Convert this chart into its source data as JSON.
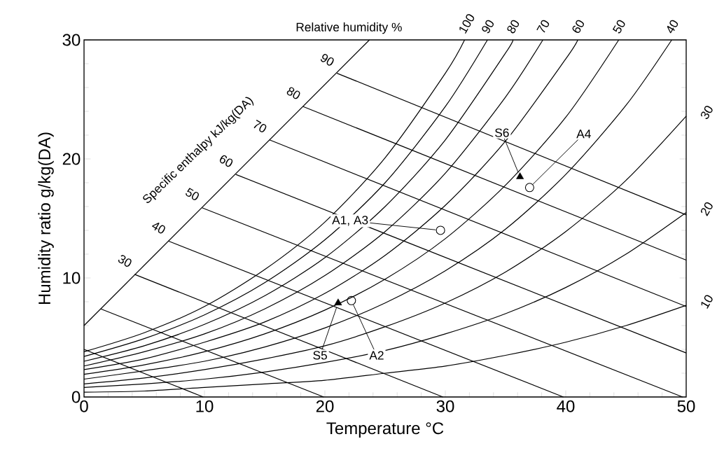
{
  "chart_data": {
    "type": "line",
    "xlabel": "Temperature  °C",
    "ylabel": "Humidity ratio  g/kg(DA)",
    "xlim": [
      0,
      50
    ],
    "ylim": [
      0,
      30
    ],
    "xticks": [
      0,
      10,
      20,
      30,
      40,
      50
    ],
    "yticks": [
      0,
      10,
      20,
      30
    ],
    "grid": false,
    "annotations": [
      "Relative humidity  %",
      "Specific enthalpy  kJ/kg(DA)",
      {
        "text": "S5",
        "x": 21.1,
        "y": 7.9
      },
      {
        "text": "A2",
        "x": 22.2,
        "y": 8.1
      },
      {
        "text": "A1, A3",
        "x": 29.6,
        "y": 14.0
      },
      {
        "text": "S6",
        "x": 36.2,
        "y": 18.5
      },
      {
        "text": "A4",
        "x": 37.0,
        "y": 17.6
      }
    ],
    "series": [
      {
        "name": "100",
        "color": "#000000",
        "x": [
          0,
          5,
          10,
          15,
          20,
          25,
          30,
          31.6
        ],
        "values": [
          3.8,
          5.4,
          7.6,
          10.7,
          14.7,
          20.1,
          27.2,
          30
        ]
      },
      {
        "name": "90",
        "color": "#000000",
        "x": [
          0,
          5,
          10,
          15,
          20,
          25,
          30,
          33.5
        ],
        "values": [
          3.4,
          4.9,
          6.9,
          9.6,
          13.2,
          18.0,
          24.4,
          30
        ]
      },
      {
        "name": "80",
        "color": "#000000",
        "x": [
          0,
          5,
          10,
          15,
          20,
          25,
          30,
          35,
          35.6
        ],
        "values": [
          3.0,
          4.3,
          6.1,
          8.5,
          11.7,
          16.0,
          21.6,
          28.9,
          30
        ]
      },
      {
        "name": "70",
        "color": "#000000",
        "x": [
          0,
          5,
          10,
          15,
          20,
          25,
          30,
          35,
          38.1
        ],
        "values": [
          2.6,
          3.8,
          5.3,
          7.4,
          10.2,
          13.9,
          18.8,
          25.2,
          30
        ]
      },
      {
        "name": "60",
        "color": "#000000",
        "x": [
          0,
          5,
          10,
          15,
          20,
          25,
          30,
          35,
          40,
          41.0
        ],
        "values": [
          2.3,
          3.2,
          4.6,
          6.3,
          8.7,
          11.9,
          16.1,
          21.5,
          28.4,
          30
        ]
      },
      {
        "name": "50",
        "color": "#000000",
        "x": [
          0,
          5,
          10,
          15,
          20,
          25,
          30,
          35,
          40,
          44.4
        ],
        "values": [
          1.9,
          2.7,
          3.8,
          5.3,
          7.3,
          9.9,
          13.3,
          17.8,
          23.5,
          30
        ]
      },
      {
        "name": "40",
        "color": "#000000",
        "x": [
          0,
          5,
          10,
          15,
          20,
          25,
          30,
          35,
          40,
          45,
          48.8
        ],
        "values": [
          1.5,
          2.2,
          3.0,
          4.2,
          5.8,
          7.9,
          10.6,
          14.1,
          18.7,
          24.5,
          30
        ]
      },
      {
        "name": "30",
        "color": "#000000",
        "x": [
          0,
          5,
          10,
          15,
          20,
          25,
          30,
          35,
          40,
          45,
          50
        ],
        "values": [
          1.1,
          1.6,
          2.3,
          3.2,
          4.3,
          5.9,
          7.9,
          10.5,
          13.9,
          18.2,
          23.6
        ]
      },
      {
        "name": "20",
        "color": "#000000",
        "x": [
          0,
          5,
          10,
          15,
          20,
          25,
          30,
          35,
          40,
          45,
          50
        ],
        "values": [
          0.8,
          1.1,
          1.5,
          2.1,
          2.9,
          3.9,
          5.3,
          7.0,
          9.2,
          12.0,
          15.5
        ]
      },
      {
        "name": "10",
        "color": "#000000",
        "x": [
          0,
          5,
          10,
          15,
          20,
          25,
          30,
          35,
          40,
          45,
          50
        ],
        "values": [
          0.4,
          0.5,
          0.8,
          1.1,
          1.4,
          2.0,
          2.6,
          3.5,
          4.6,
          6.0,
          7.7
        ]
      },
      {
        "color": "#000000",
        "x": [
          0,
          9.9
        ],
        "values": [
          4.0,
          0
        ]
      },
      {
        "color": "#000000",
        "x": [
          1.4,
          19.9
        ],
        "values": [
          7.4,
          0
        ]
      },
      {
        "name": "30",
        "color": "#000000",
        "x": [
          4.2,
          29.8
        ],
        "values": [
          10.3,
          0
        ]
      },
      {
        "name": "40",
        "color": "#000000",
        "x": [
          7.0,
          39.8
        ],
        "values": [
          13.1,
          0
        ]
      },
      {
        "name": "50",
        "color": "#000000",
        "x": [
          9.8,
          49.7
        ],
        "values": [
          15.9,
          0
        ]
      },
      {
        "name": "60",
        "color": "#000000",
        "x": [
          12.6,
          50
        ],
        "values": [
          18.7,
          3.7
        ]
      },
      {
        "name": "70",
        "color": "#000000",
        "x": [
          15.4,
          50
        ],
        "values": [
          21.6,
          7.6
        ]
      },
      {
        "name": "80",
        "color": "#000000",
        "x": [
          18.2,
          50
        ],
        "values": [
          24.4,
          11.5
        ]
      },
      {
        "name": "90",
        "color": "#000000",
        "x": [
          21.0,
          50
        ],
        "values": [
          27.2,
          15.3
        ]
      },
      {
        "color": "#000000",
        "x": [
          0,
          23.7
        ],
        "values": [
          6,
          30
        ]
      },
      {
        "type": "scatter",
        "marker": "triangle",
        "color": "#000000",
        "x": [
          21.1,
          36.2
        ],
        "values": [
          7.9,
          18.5
        ]
      },
      {
        "type": "scatter",
        "marker": "circle",
        "color": "#000000",
        "x": [
          22.2,
          29.6,
          37.0
        ],
        "values": [
          8.1,
          14.0,
          17.6
        ]
      }
    ]
  }
}
